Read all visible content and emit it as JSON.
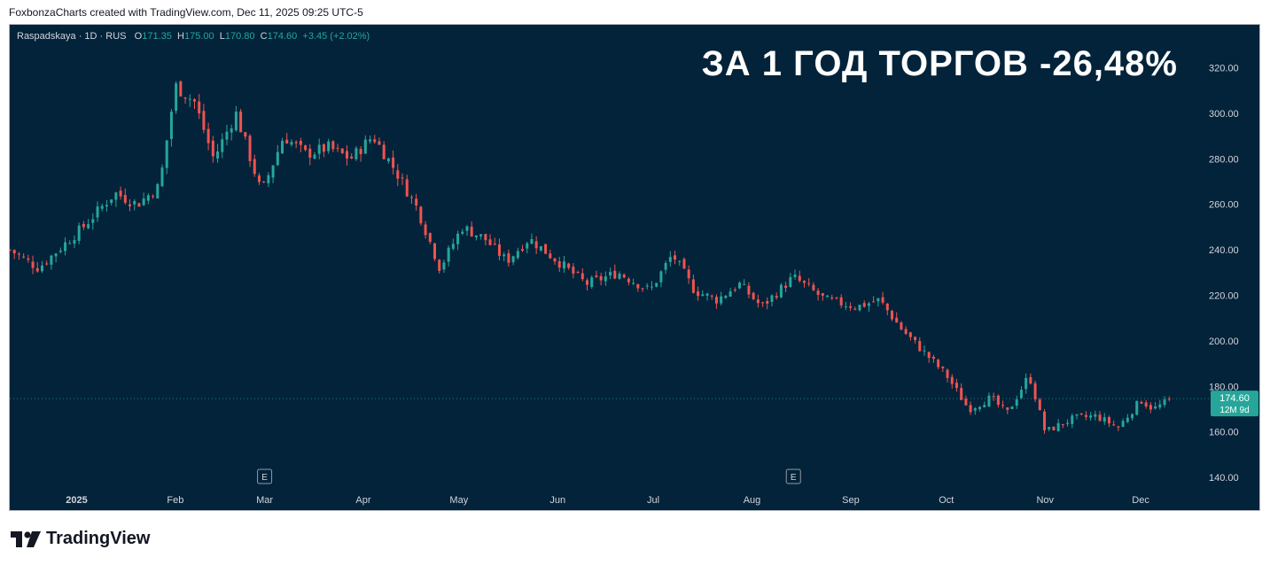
{
  "header": {
    "credit": "FoxbonzaCharts created with TradingView.com, Dec 11, 2025 09:25 UTC-5"
  },
  "legend": {
    "symbol": "Raspadskaya · 1D · RUS",
    "o_label": "O",
    "o_value": "171.35",
    "h_label": "H",
    "h_value": "175.00",
    "l_label": "L",
    "l_value": "170.80",
    "c_label": "C",
    "c_value": "174.60",
    "change": "+3.45 (+2.02%)"
  },
  "headline": "ЗА 1 ГОД ТОРГОВ -26,48%",
  "price_tag": {
    "price": "174.60",
    "countdown": "12M 9d"
  },
  "footer": {
    "brand": "TradingView"
  },
  "colors": {
    "background": "#03233a",
    "up": "#26a69a",
    "down": "#ef5350",
    "text": "#d1d4dc"
  },
  "chart_data": {
    "type": "candlestick",
    "title": "",
    "yaxis": {
      "ticks": [
        140,
        160,
        180,
        200,
        220,
        240,
        260,
        280,
        300,
        320
      ],
      "tick_labels": [
        "140.00",
        "160.00",
        "180.00",
        "200.00",
        "220.00",
        "240.00",
        "260.00",
        "280.00",
        "300.00",
        "320.00"
      ],
      "ylim": [
        130,
        330
      ],
      "side": "right"
    },
    "xaxis": {
      "labels": [
        "2025",
        "Feb",
        "Mar",
        "Apr",
        "May",
        "Jun",
        "Jul",
        "Aug",
        "Sep",
        "Oct",
        "Nov",
        "Dec"
      ],
      "range": [
        "2024-12-11",
        "2025-12-11"
      ]
    },
    "events": [
      {
        "label": "E",
        "date": "2025-03-01"
      },
      {
        "label": "E",
        "date": "2025-08-14"
      }
    ],
    "last_price": 174.6,
    "close_path": [
      [
        "2024-12-11",
        240
      ],
      [
        "2024-12-20",
        232
      ],
      [
        "2025-01-03",
        250
      ],
      [
        "2025-01-13",
        265
      ],
      [
        "2025-01-20",
        260
      ],
      [
        "2025-01-27",
        268
      ],
      [
        "2025-02-01",
        312
      ],
      [
        "2025-02-07",
        305
      ],
      [
        "2025-02-13",
        280
      ],
      [
        "2025-02-20",
        300
      ],
      [
        "2025-02-28",
        265
      ],
      [
        "2025-03-07",
        290
      ],
      [
        "2025-03-14",
        282
      ],
      [
        "2025-03-21",
        285
      ],
      [
        "2025-03-28",
        280
      ],
      [
        "2025-04-04",
        290
      ],
      [
        "2025-04-11",
        275
      ],
      [
        "2025-04-18",
        258
      ],
      [
        "2025-04-25",
        232
      ],
      [
        "2025-05-02",
        250
      ],
      [
        "2025-05-09",
        245
      ],
      [
        "2025-05-16",
        235
      ],
      [
        "2025-05-23",
        245
      ],
      [
        "2025-06-01",
        235
      ],
      [
        "2025-06-10",
        225
      ],
      [
        "2025-06-20",
        230
      ],
      [
        "2025-06-30",
        222
      ],
      [
        "2025-07-07",
        238
      ],
      [
        "2025-07-14",
        222
      ],
      [
        "2025-07-21",
        218
      ],
      [
        "2025-07-28",
        225
      ],
      [
        "2025-08-04",
        215
      ],
      [
        "2025-08-14",
        228
      ],
      [
        "2025-08-24",
        218
      ],
      [
        "2025-09-03",
        215
      ],
      [
        "2025-09-10",
        218
      ],
      [
        "2025-09-17",
        205
      ],
      [
        "2025-09-24",
        195
      ],
      [
        "2025-10-01",
        185
      ],
      [
        "2025-10-08",
        170
      ],
      [
        "2025-10-15",
        175
      ],
      [
        "2025-10-20",
        168
      ],
      [
        "2025-10-27",
        185
      ],
      [
        "2025-11-01",
        160
      ],
      [
        "2025-11-10",
        166
      ],
      [
        "2025-11-17",
        167
      ],
      [
        "2025-11-24",
        162
      ],
      [
        "2025-12-01",
        174
      ],
      [
        "2025-12-05",
        170
      ],
      [
        "2025-12-11",
        174.6
      ]
    ]
  }
}
